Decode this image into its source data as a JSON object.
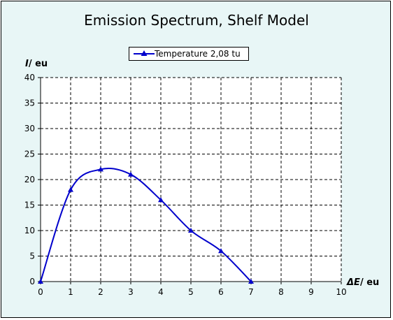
{
  "chart_data": {
    "type": "line",
    "title": "Emission Spectrum, Shelf Model",
    "xlabel": {
      "symbol": "ΔE",
      "unit": "/ eu"
    },
    "ylabel": {
      "symbol": "I",
      "unit": "/ eu"
    },
    "xlim": [
      0,
      10
    ],
    "ylim": [
      0,
      40
    ],
    "xticks": [
      0,
      1,
      2,
      3,
      4,
      5,
      6,
      7,
      8,
      9,
      10
    ],
    "yticks": [
      0,
      5,
      10,
      15,
      20,
      25,
      30,
      35,
      40
    ],
    "grid": true,
    "legend_position": "top-center",
    "series": [
      {
        "name": "Temperature 2,08 tu",
        "color": "#0000cc",
        "marker": "triangle",
        "x": [
          0,
          1,
          2,
          3,
          4,
          5,
          6,
          7
        ],
        "y": [
          0,
          18,
          22,
          21,
          16,
          10,
          6,
          0
        ]
      }
    ]
  },
  "colors": {
    "background": "#e8f6f6",
    "plot_area": "#ffffff",
    "series": "#0000cc"
  }
}
